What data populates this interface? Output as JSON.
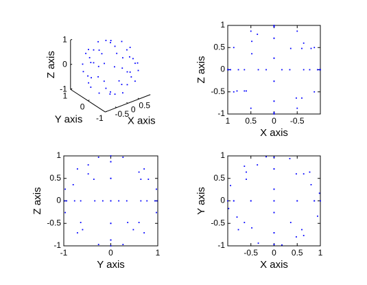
{
  "chart_data": [
    {
      "type": "scatter3d",
      "color": "#0000ff",
      "xlabel": "X axis",
      "ylabel": "Y axis",
      "zlabel": "Z axis",
      "xlim": [
        -1,
        1
      ],
      "ylim": [
        -1,
        1
      ],
      "zlim": [
        -1,
        1
      ],
      "xticks": [
        -0.5,
        0,
        0.5
      ],
      "yticks": [
        -1,
        0,
        1
      ],
      "zticks": [
        -1,
        0,
        1
      ],
      "x": [
        0,
        0,
        0,
        0,
        0,
        0,
        0,
        0,
        0,
        0,
        0,
        0,
        1,
        0.87,
        0.5,
        0,
        -0.5,
        -0.87,
        -1,
        -0.87,
        -0.5,
        0,
        0.5,
        0.87,
        0.98,
        0.77,
        0.34,
        -0.17,
        -0.64,
        -0.94,
        -0.98,
        -0.77,
        -0.34,
        0.17,
        0.64,
        0.94,
        0.48,
        -0.6,
        0.36,
        -0.8,
        0.64,
        -0.48,
        0.6,
        -0.36,
        0.8,
        -0.64,
        0.48,
        -0.6
      ],
      "y": [
        0.97,
        0.71,
        0.26,
        -0.26,
        -0.71,
        -0.97,
        -0.97,
        -0.71,
        -0.26,
        0.26,
        0.71,
        0.97,
        0,
        0,
        0,
        0,
        0,
        0,
        0,
        0,
        0,
        0,
        0,
        0,
        0.17,
        0.64,
        0.94,
        0.98,
        0.77,
        0.34,
        -0.17,
        -0.64,
        -0.94,
        -0.98,
        -0.77,
        -0.34,
        0.6,
        0.48,
        -0.48,
        -0.36,
        0.6,
        -0.6,
        -0.64,
        0.8,
        0.36,
        -0.48,
        -0.8,
        0.64
      ],
      "z": [
        0.26,
        0.71,
        0.97,
        0.97,
        0.71,
        0.26,
        -0.26,
        -0.71,
        -0.97,
        -0.97,
        -0.71,
        -0.26,
        0,
        0.5,
        0.87,
        1,
        0.87,
        0.5,
        0,
        -0.5,
        -0.87,
        -1,
        -0.87,
        -0.5,
        0,
        0,
        0,
        0,
        0,
        0,
        0,
        0,
        0,
        0,
        0,
        0,
        0.64,
        -0.64,
        0.8,
        0.48,
        -0.48,
        -0.64,
        -0.48,
        0.48,
        -0.48,
        0.6,
        0.36,
        0.48
      ]
    },
    {
      "type": "scatter",
      "color": "#0000ff",
      "xlabel": "X axis",
      "ylabel": "Z axis",
      "xlim": [
        -1,
        1
      ],
      "x_reversed": true,
      "ylim": [
        -1,
        1
      ],
      "xticks": [
        -0.5,
        0,
        0.5,
        1
      ],
      "yticks": [
        -1,
        -0.5,
        0,
        0.5,
        1
      ],
      "x": [
        0,
        0,
        0,
        0,
        0,
        0,
        0,
        0,
        0,
        0,
        0,
        0,
        1,
        0.87,
        0.5,
        0,
        -0.5,
        -0.87,
        -1,
        -0.87,
        -0.5,
        0,
        0.5,
        0.87,
        0.98,
        0.77,
        0.34,
        -0.17,
        -0.64,
        -0.94,
        -0.98,
        -0.77,
        -0.34,
        0.17,
        0.64,
        0.94,
        0.48,
        -0.6,
        0.36,
        -0.8,
        0.64,
        -0.48,
        0.6,
        -0.36,
        0.8,
        -0.64,
        0.48,
        -0.6
      ],
      "values": [
        0.26,
        0.71,
        0.97,
        0.97,
        0.71,
        0.26,
        -0.26,
        -0.71,
        -0.97,
        -0.97,
        -0.71,
        -0.26,
        0,
        0.5,
        0.87,
        1,
        0.87,
        0.5,
        0,
        -0.5,
        -0.87,
        -1,
        -0.87,
        -0.5,
        0,
        0,
        0,
        0,
        0,
        0,
        0,
        0,
        0,
        0,
        0,
        0,
        0.64,
        -0.64,
        0.8,
        0.48,
        -0.48,
        -0.64,
        -0.48,
        0.48,
        -0.48,
        0.6,
        0.36,
        0.48
      ]
    },
    {
      "type": "scatter",
      "color": "#0000ff",
      "xlabel": "Y axis",
      "ylabel": "Z axis",
      "xlim": [
        -1,
        1
      ],
      "ylim": [
        -1,
        1
      ],
      "xticks": [
        -1,
        0,
        1
      ],
      "yticks": [
        -1,
        -0.5,
        0,
        0.5,
        1
      ],
      "x": [
        0.97,
        0.71,
        0.26,
        -0.26,
        -0.71,
        -0.97,
        -0.97,
        -0.71,
        -0.26,
        0.26,
        0.71,
        0.97,
        0,
        0,
        0,
        0,
        0,
        0,
        0,
        0,
        0,
        0,
        0,
        0,
        0.17,
        0.64,
        0.94,
        0.98,
        0.77,
        0.34,
        -0.17,
        -0.64,
        -0.94,
        -0.98,
        -0.77,
        -0.34,
        0.6,
        0.48,
        -0.48,
        -0.36,
        0.6,
        -0.6,
        -0.64,
        0.8,
        0.36,
        -0.48,
        -0.8,
        0.64
      ],
      "values": [
        0.26,
        0.71,
        0.97,
        0.97,
        0.71,
        0.26,
        -0.26,
        -0.71,
        -0.97,
        -0.97,
        -0.71,
        -0.26,
        0,
        0.5,
        0.87,
        1,
        0.87,
        0.5,
        0,
        -0.5,
        -0.87,
        -1,
        -0.87,
        -0.5,
        0,
        0,
        0,
        0,
        0,
        0,
        0,
        0,
        0,
        0,
        0,
        0,
        0.64,
        -0.64,
        0.8,
        0.48,
        -0.48,
        -0.64,
        -0.48,
        0.48,
        -0.48,
        0.6,
        0.36,
        0.48
      ]
    },
    {
      "type": "scatter",
      "color": "#0000ff",
      "xlabel": "X axis",
      "ylabel": "Y axis",
      "xlim": [
        -1,
        1
      ],
      "ylim": [
        -1,
        1
      ],
      "xticks": [
        -0.5,
        0,
        0.5,
        1
      ],
      "yticks": [
        -1,
        -0.5,
        0,
        0.5,
        1
      ],
      "x": [
        0,
        0,
        0,
        0,
        0,
        0,
        0,
        0,
        0,
        0,
        0,
        0,
        1,
        0.87,
        0.5,
        0,
        -0.5,
        -0.87,
        -1,
        -0.87,
        -0.5,
        0,
        0.5,
        0.87,
        0.98,
        0.77,
        0.34,
        -0.17,
        -0.64,
        -0.94,
        -0.98,
        -0.77,
        -0.34,
        0.17,
        0.64,
        0.94,
        0.48,
        -0.6,
        0.36,
        -0.8,
        0.64,
        -0.48,
        0.6,
        -0.36,
        0.8,
        -0.64,
        0.48,
        -0.6
      ],
      "values": [
        0.97,
        0.71,
        0.26,
        -0.26,
        -0.71,
        -0.97,
        -0.97,
        -0.71,
        -0.26,
        0.26,
        0.71,
        0.97,
        0,
        0,
        0,
        0,
        0,
        0,
        0,
        0,
        0,
        0,
        0,
        0,
        0.17,
        0.64,
        0.94,
        0.98,
        0.77,
        0.34,
        -0.17,
        -0.64,
        -0.94,
        -0.98,
        -0.77,
        -0.34,
        0.6,
        0.48,
        -0.48,
        -0.36,
        0.6,
        -0.6,
        -0.64,
        0.8,
        0.36,
        -0.48,
        -0.8,
        0.64
      ]
    }
  ]
}
